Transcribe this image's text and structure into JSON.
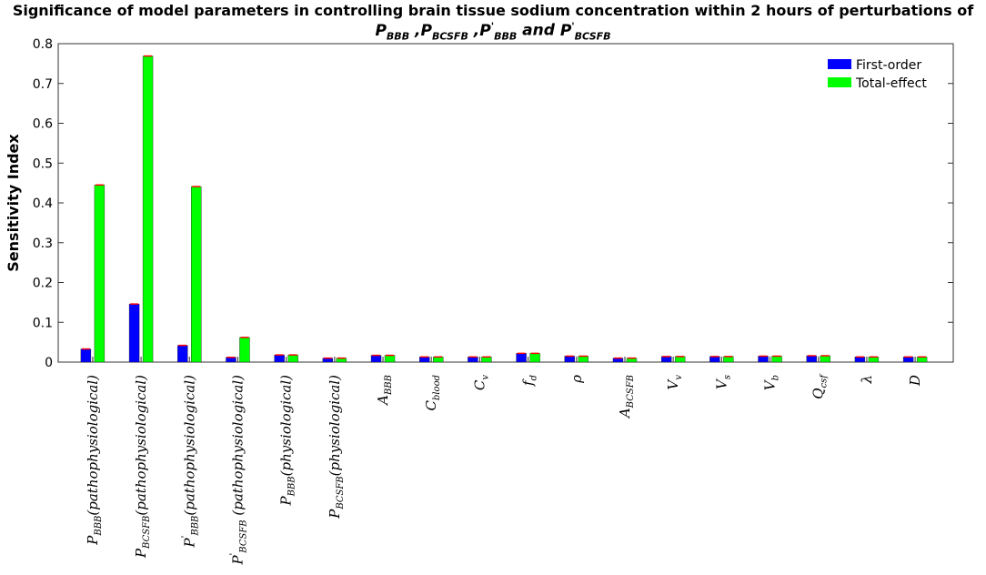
{
  "chart_data": {
    "type": "bar",
    "title": "Significance of model parameters in controlling brain tissue sodium concentration within 2 hours of perturbations of",
    "subtitle_parts": [
      {
        "base": "P",
        "sub": "BBB",
        "sup": ""
      },
      {
        "sep": " ,"
      },
      {
        "base": "P",
        "sub": "BCSFB",
        "sup": ""
      },
      {
        "sep": " ,"
      },
      {
        "base": "P",
        "sub": "BBB",
        "sup": "'"
      },
      {
        "sep": " and "
      },
      {
        "base": "P",
        "sub": "BCSFB",
        "sup": "'"
      }
    ],
    "ylabel": "Sensitivity Index",
    "xlabel": "",
    "ylim": [
      0,
      0.8
    ],
    "yticks": [
      "0",
      "0.1",
      "0.2",
      "0.3",
      "0.4",
      "0.5",
      "0.6",
      "0.7",
      "0.8"
    ],
    "legend_position": "top-right",
    "categories": [
      {
        "base": "P",
        "sub": "BBB",
        "sup": "",
        "suffix": "(pathophysiological)"
      },
      {
        "base": "P",
        "sub": "BCSFB",
        "sup": "",
        "suffix": "(pathophysiological)"
      },
      {
        "base": "P",
        "sub": "BBB",
        "sup": "'",
        "suffix": "(pathophysiological)"
      },
      {
        "base": "P",
        "sub": "BCSFB",
        "sup": "'",
        "suffix": " (pathophysiological)"
      },
      {
        "base": "P",
        "sub": "BBB",
        "sup": "",
        "suffix": "(physiological)"
      },
      {
        "base": "P",
        "sub": "BCSFB",
        "sup": "",
        "suffix": "(physiological)"
      },
      {
        "base": "A",
        "sub": "BBB",
        "sup": "",
        "suffix": ""
      },
      {
        "base": "C",
        "sub": "blood",
        "sup": "",
        "suffix": ""
      },
      {
        "base": "C",
        "sub": "v",
        "sup": "",
        "suffix": ""
      },
      {
        "base": "f",
        "sub": "d",
        "sup": "",
        "suffix": ""
      },
      {
        "base": "ρ",
        "sub": "",
        "sup": "",
        "suffix": ""
      },
      {
        "base": "A",
        "sub": "BCSFB",
        "sup": "",
        "suffix": ""
      },
      {
        "base": "V",
        "sub": "v",
        "sup": "",
        "suffix": ""
      },
      {
        "base": "V",
        "sub": "s",
        "sup": "",
        "suffix": ""
      },
      {
        "base": "V",
        "sub": "b",
        "sup": "",
        "suffix": ""
      },
      {
        "base": "Q",
        "sub": "csf",
        "sup": "",
        "suffix": ""
      },
      {
        "base": "λ",
        "sub": "",
        "sup": "",
        "suffix": ""
      },
      {
        "base": "D",
        "sub": "",
        "sup": "",
        "suffix": ""
      }
    ],
    "series": [
      {
        "name": "First-order",
        "color": "#0000ff",
        "values": [
          0.033,
          0.146,
          0.042,
          0.012,
          0.018,
          0.01,
          0.017,
          0.013,
          0.013,
          0.022,
          0.015,
          0.01,
          0.014,
          0.014,
          0.015,
          0.016,
          0.013,
          0.013
        ]
      },
      {
        "name": "Total-effect",
        "color": "#00ff00",
        "values": [
          0.445,
          0.769,
          0.441,
          0.062,
          0.018,
          0.01,
          0.017,
          0.013,
          0.013,
          0.022,
          0.015,
          0.01,
          0.014,
          0.014,
          0.015,
          0.016,
          0.013,
          0.013
        ]
      }
    ],
    "errorbar_color": "#ff0000"
  }
}
